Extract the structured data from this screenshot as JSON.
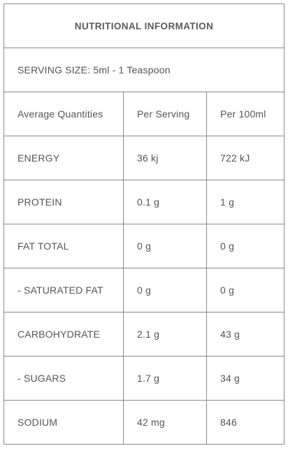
{
  "title": "NUTRITIONAL INFORMATION",
  "serving_size": "SERVING SIZE: 5ml - 1 Teaspoon",
  "headers": [
    "Average Quantities",
    "Per Serving",
    "Per 100ml"
  ],
  "rows": [
    [
      "ENERGY",
      "36 kj",
      "722 kJ"
    ],
    [
      "PROTEIN",
      "0.1 g",
      "1 g"
    ],
    [
      "FAT TOTAL",
      "0 g",
      "0 g"
    ],
    [
      "- SATURATED FAT",
      "0 g",
      "0 g"
    ],
    [
      "CARBOHYDRATE",
      "2.1 g",
      "43 g"
    ],
    [
      "- SUGARS",
      "1.7 g",
      "34 g"
    ],
    [
      "SODIUM",
      "42 mg",
      "846"
    ]
  ]
}
